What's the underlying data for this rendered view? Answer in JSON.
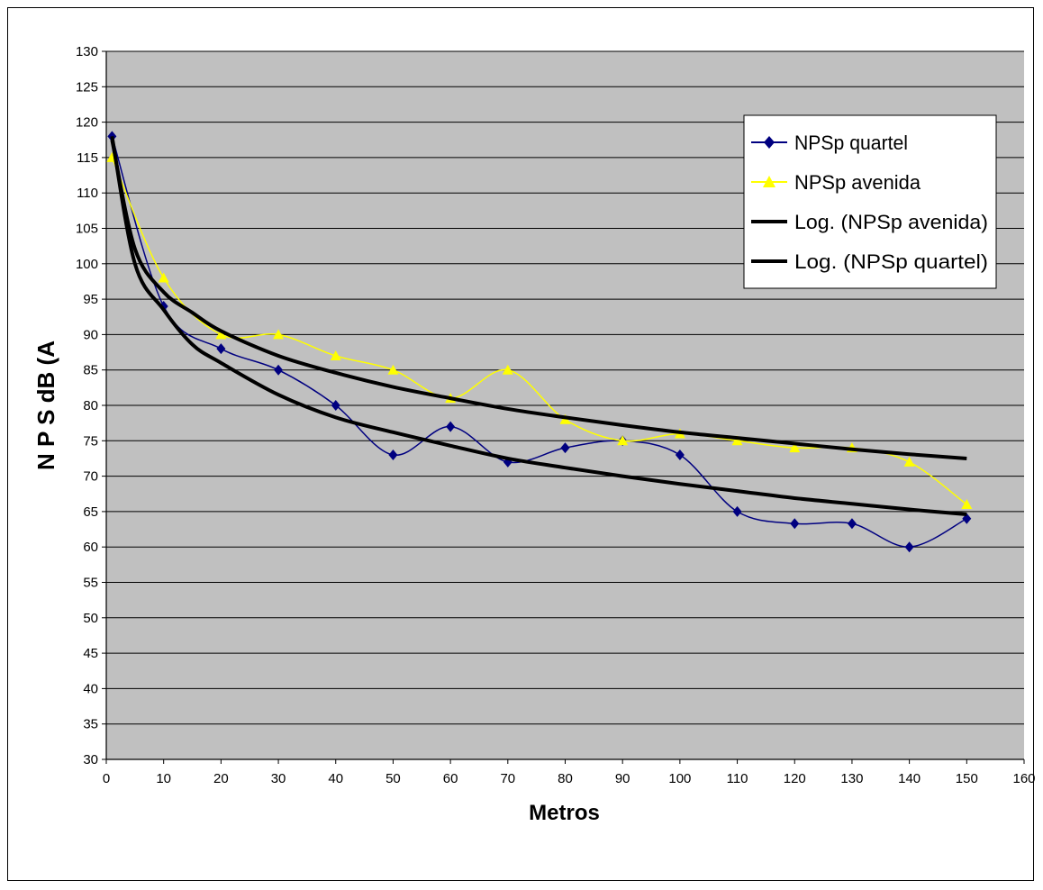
{
  "chart_data": {
    "type": "line",
    "title": "",
    "xlabel": "Metros",
    "ylabel": "N P S  dB (A",
    "xlim": [
      0,
      160
    ],
    "ylim": [
      30,
      130
    ],
    "x_ticks": [
      0,
      10,
      20,
      30,
      40,
      50,
      60,
      70,
      80,
      90,
      100,
      110,
      120,
      130,
      140,
      150,
      160
    ],
    "y_ticks": [
      30,
      35,
      40,
      45,
      50,
      55,
      60,
      65,
      70,
      75,
      80,
      85,
      90,
      95,
      100,
      105,
      110,
      115,
      120,
      125,
      130
    ],
    "grid": "horizontal",
    "plot_background": "#c0c0c0",
    "legend_position": "top-right",
    "series": [
      {
        "name": "NPSp quartel",
        "color": "#000080",
        "marker": "diamond",
        "x": [
          1,
          10,
          20,
          30,
          40,
          50,
          60,
          70,
          80,
          90,
          100,
          110,
          120,
          130,
          140,
          150
        ],
        "values": [
          118,
          94,
          88,
          85,
          80,
          73,
          77,
          72,
          74,
          75,
          73,
          65,
          63.3,
          63.3,
          60,
          64
        ]
      },
      {
        "name": "NPSp avenida",
        "color": "#ffff00",
        "marker": "triangle",
        "x": [
          1,
          10,
          20,
          30,
          40,
          50,
          60,
          70,
          80,
          90,
          100,
          110,
          120,
          130,
          140,
          150
        ],
        "values": [
          115,
          98,
          90,
          90,
          87,
          85,
          81,
          85,
          78,
          75,
          76,
          75,
          74,
          74,
          72,
          66
        ]
      },
      {
        "name": "Log. (NPSp avenida)",
        "color": "#000000",
        "marker": "none",
        "trend": "log",
        "x": [
          1,
          5,
          10,
          15,
          20,
          30,
          40,
          50,
          60,
          70,
          80,
          90,
          100,
          110,
          120,
          130,
          140,
          150
        ],
        "values": [
          117.5,
          102.1,
          96,
          93.1,
          90.5,
          87,
          84.6,
          82.6,
          81,
          79.5,
          78.3,
          77.2,
          76.2,
          75.4,
          74.6,
          73.8,
          73.1,
          72.5
        ]
      },
      {
        "name": "Log. (NPSp quartel)",
        "color": "#000000",
        "marker": "none",
        "trend": "log",
        "x": [
          1,
          5,
          10,
          15,
          20,
          30,
          40,
          50,
          60,
          70,
          80,
          90,
          100,
          110,
          120,
          130,
          140,
          150
        ],
        "values": [
          118,
          100,
          93.5,
          88.6,
          86,
          81.5,
          78.3,
          76.2,
          74.3,
          72.5,
          71.2,
          70,
          68.9,
          67.9,
          66.9,
          66.1,
          65.3,
          64.6
        ]
      }
    ]
  }
}
